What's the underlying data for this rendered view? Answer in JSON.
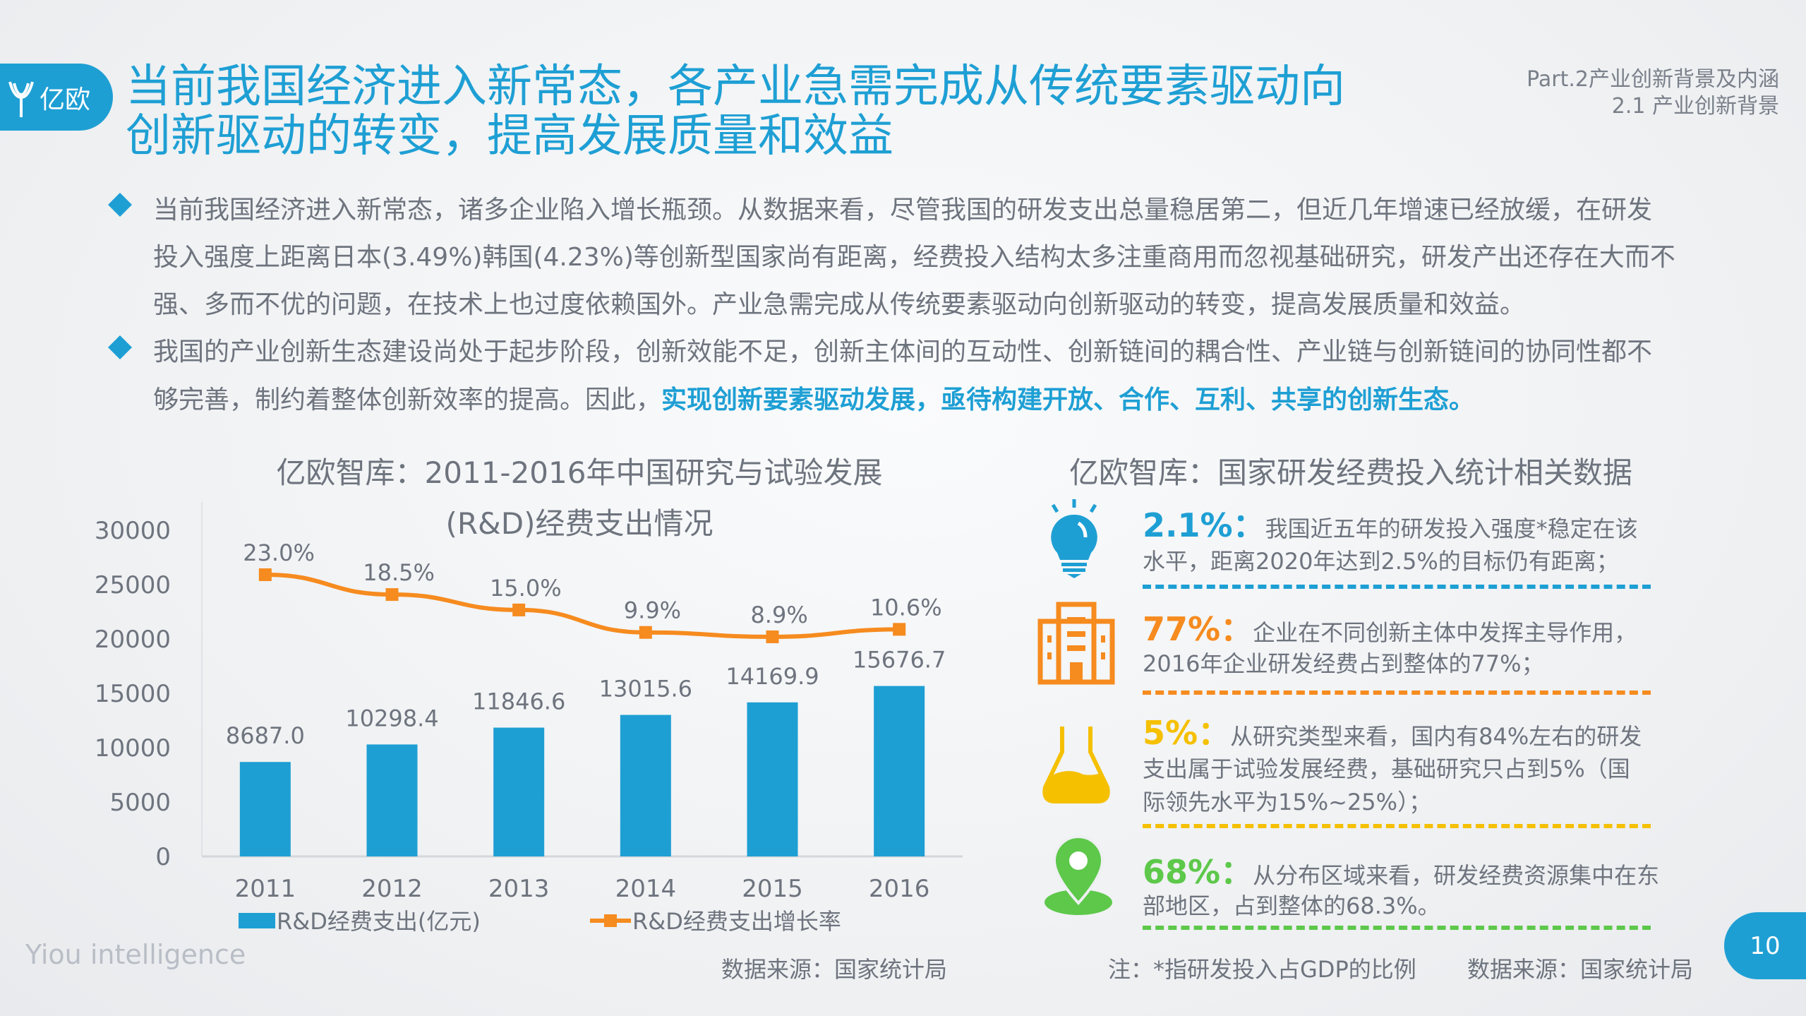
{
  "logo": {
    "text": "亿欧"
  },
  "title": {
    "line1": "当前我国经济进入新常态，各产业急需完成从传统要素驱动向",
    "line2": "创新驱动的转变，提高发展质量和效益"
  },
  "header": {
    "part": "Part.2产业创新背景及内涵",
    "section": "2.1 产业创新背景"
  },
  "bullets": [
    {
      "lines": [
        "当前我国经济进入新常态，诸多企业陷入增长瓶颈。从数据来看，尽管我国的研发支出总量稳居第二，但近几年增速已经放缓，在研发",
        "投入强度上距离日本(3.49%)韩国(4.23%)等创新型国家尚有距离，经费投入结构太多注重商用而忽视基础研究，研发产出还存在大而不",
        "强、多而不优的问题，在技术上也过度依赖国外。产业急需完成从传统要素驱动向创新驱动的转变，提高发展质量和效益。"
      ]
    },
    {
      "lines": [
        "我国的产业创新生态建设尚处于起步阶段，创新效能不足，创新主体间的互动性、创新链间的耦合性、产业链与创新链间的协同性都不",
        "够完善，制约着整体创新效率的提高。因此，"
      ],
      "highlight": "实现创新要素驱动发展，亟待构建开放、合作、互利、共享的创新生态。"
    }
  ],
  "chart_data": {
    "type": "bar",
    "title_line1": "亿欧智库：2011-2016年中国研究与试验发展",
    "title_line2": "(R&D)经费支出情况",
    "categories": [
      "2011",
      "2012",
      "2013",
      "2014",
      "2015",
      "2016"
    ],
    "ylim": [
      0,
      30000
    ],
    "yticks": [
      "0",
      "5000",
      "10000",
      "15000",
      "20000",
      "25000",
      "30000"
    ],
    "legend_position": "bottom",
    "series": [
      {
        "name": "R&D经费支出(亿元)",
        "type": "bar",
        "color": "#1e9fd4",
        "values": [
          8687.0,
          10298.4,
          11846.6,
          13015.6,
          14169.9,
          15676.7
        ],
        "labels": [
          "8687.0",
          "10298.4",
          "11846.6",
          "13015.6",
          "14169.9",
          "15676.7"
        ]
      },
      {
        "name": "R&D经费支出增长率",
        "type": "line",
        "color": "#f68b1f",
        "values": [
          23.0,
          18.5,
          15.0,
          9.9,
          8.9,
          10.6
        ],
        "labels": [
          "23.0%",
          "18.5%",
          "15.0%",
          "9.9%",
          "8.9%",
          "10.6%"
        ]
      }
    ],
    "source": "数据来源：国家统计局"
  },
  "watermark": "Yiou intelligence",
  "right": {
    "title": "亿欧智库：国家研发经费投入统计相关数据",
    "items": [
      {
        "icon": "lightbulb-icon",
        "color": "#1e9fd4",
        "value": "2.1%：",
        "lines": [
          "我国近五年的研发投入强度*稳定在该",
          "水平，距离2020年达到2.5%的目标仍有距离；"
        ]
      },
      {
        "icon": "building-icon",
        "color": "#f68b1f",
        "value": "77%：",
        "lines": [
          "企业在不同创新主体中发挥主导作用，",
          "2016年企业研发经费占到整体的77%；"
        ]
      },
      {
        "icon": "flask-icon",
        "color": "#f5c000",
        "value": "5%：",
        "lines": [
          "从研究类型来看，国内有84%左右的研发",
          "支出属于试验发展经费，基础研究只占到5%（国",
          "际领先水平为15%~25%）；"
        ]
      },
      {
        "icon": "location-pin-icon",
        "color": "#5dc84a",
        "value": "68%：",
        "lines": [
          "从分布区域来看，研发经费资源集中在东",
          "部地区，占到整体的68.3%。"
        ]
      }
    ],
    "note": "注：*指研发投入占GDP的比例",
    "source": "数据来源：国家统计局"
  },
  "page_number": "10"
}
